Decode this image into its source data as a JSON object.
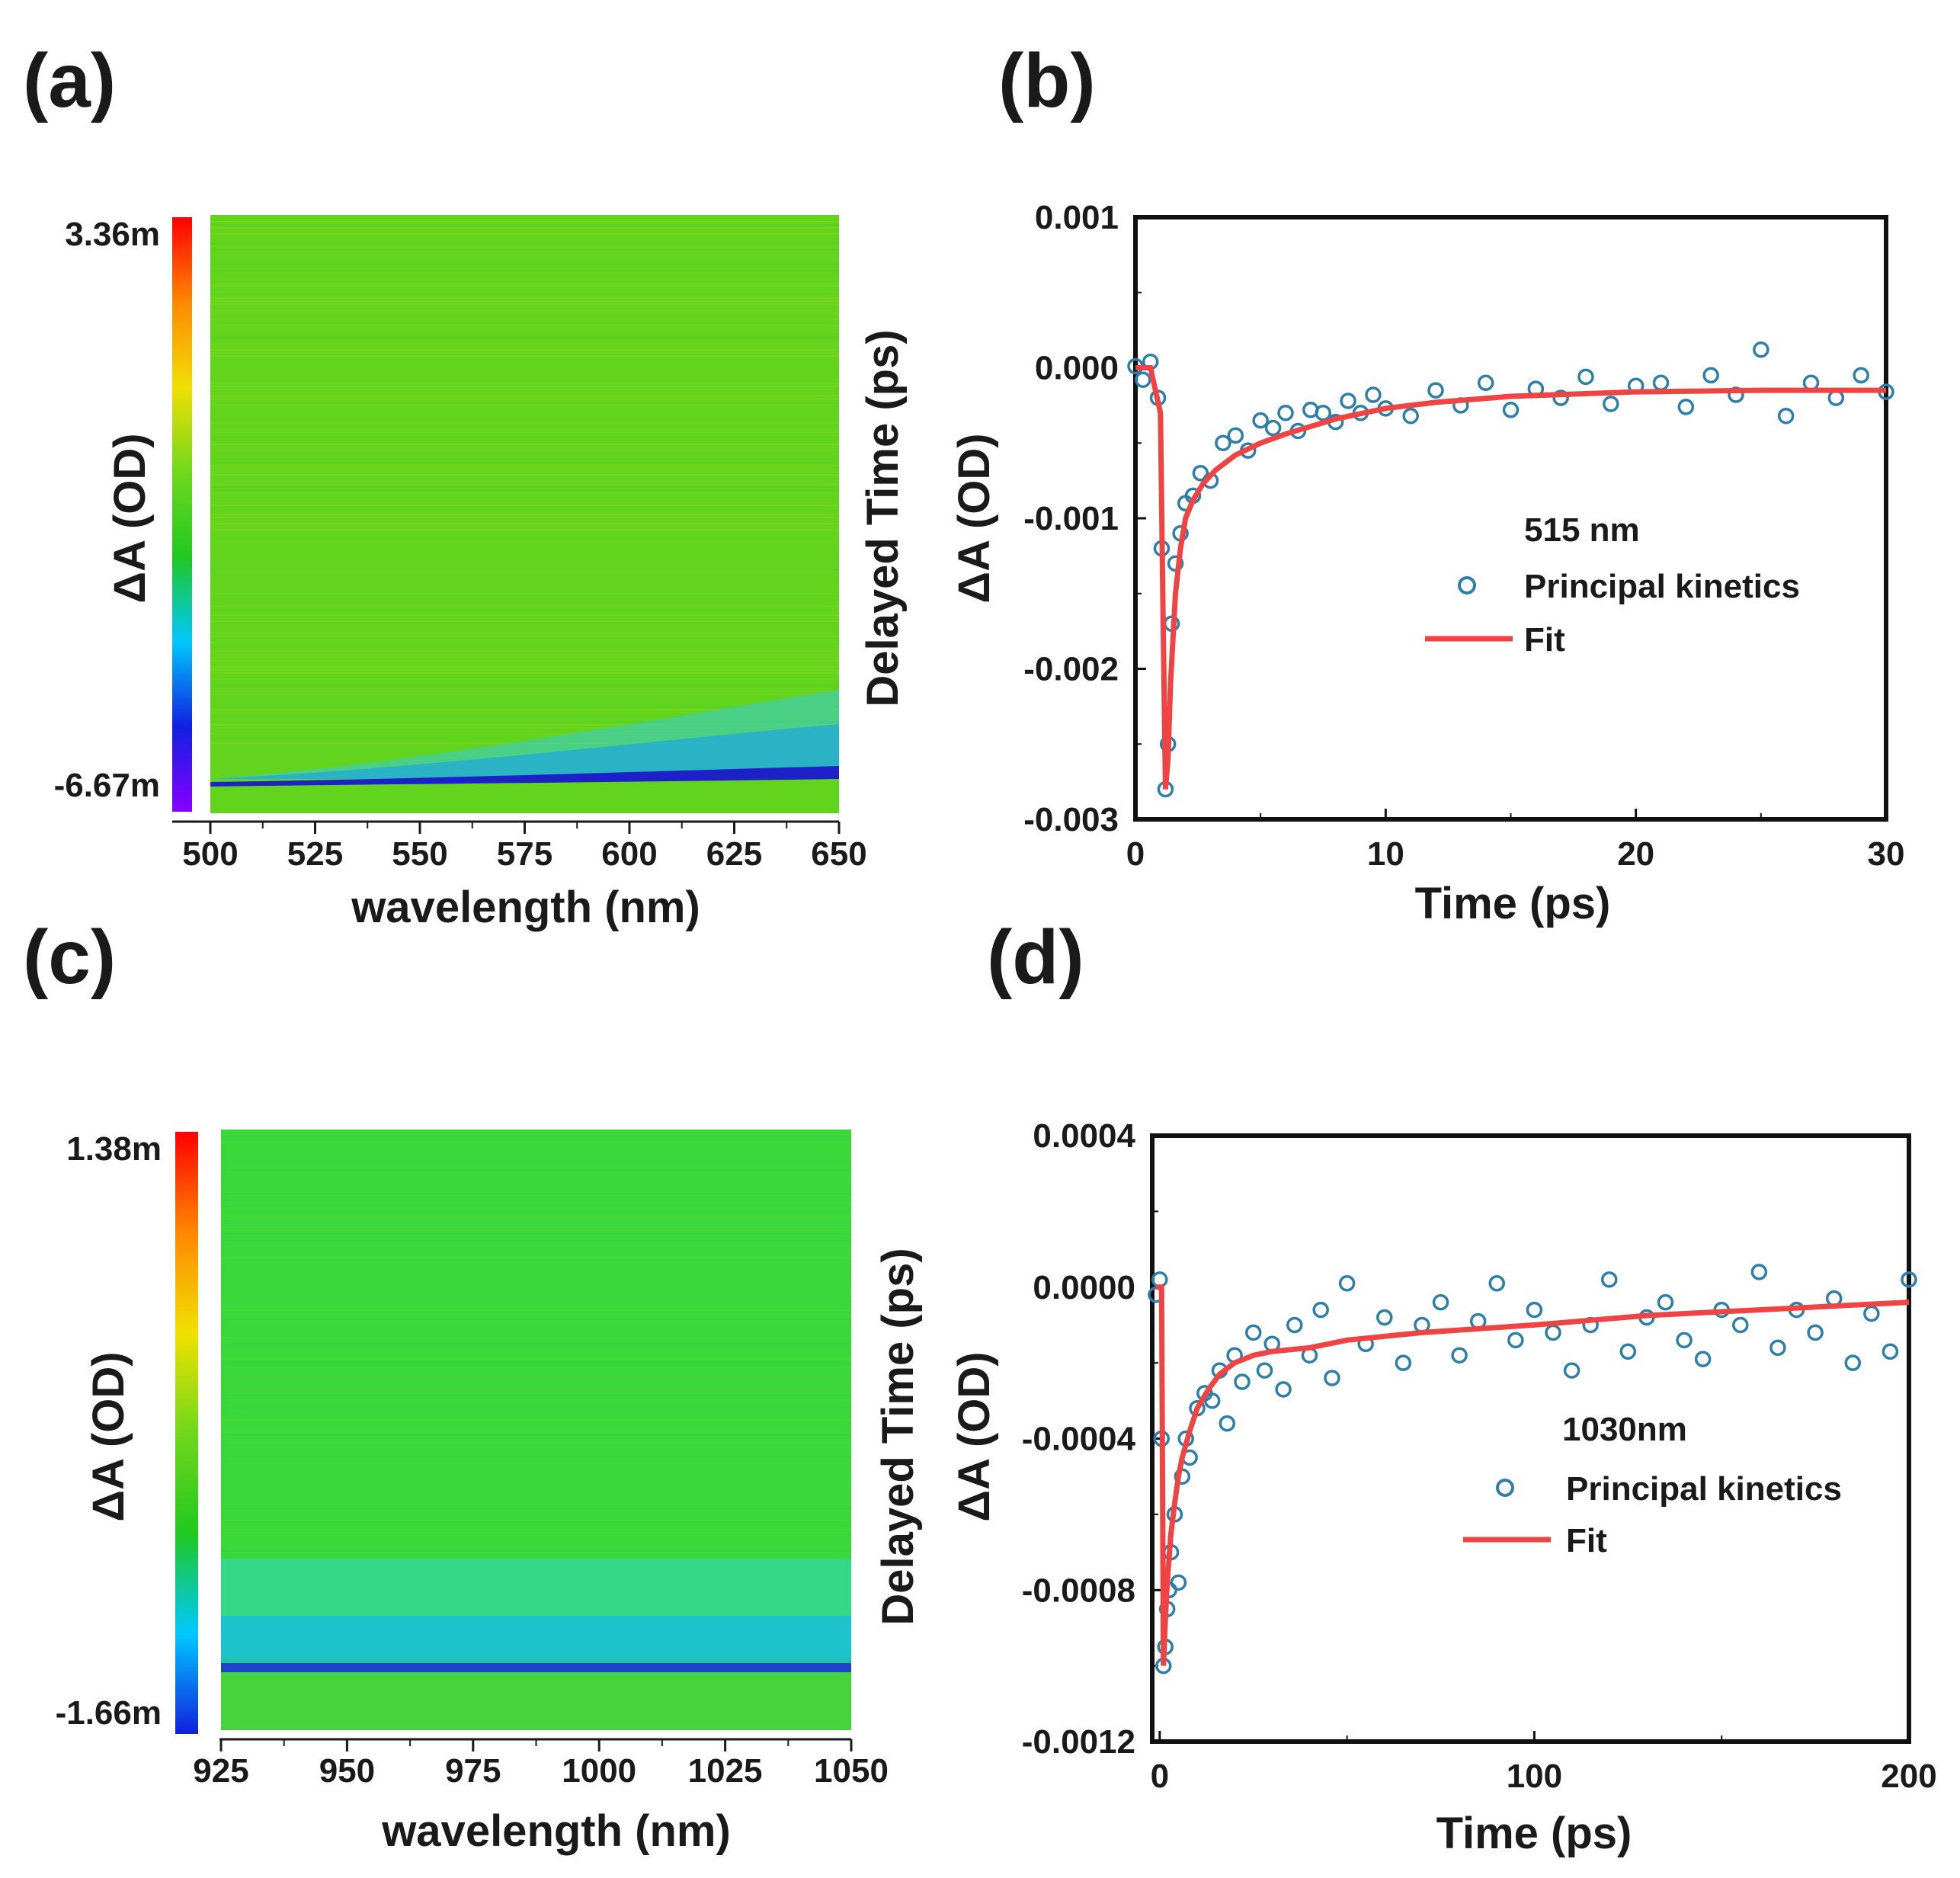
{
  "panels": {
    "a": {
      "label": "(a)"
    },
    "b": {
      "label": "(b)"
    },
    "c": {
      "label": "(c)"
    },
    "d": {
      "label": "(d)"
    }
  },
  "chart_data": [
    {
      "id": "a",
      "type": "heatmap",
      "title": "",
      "xlabel": "wavelength (nm)",
      "ylabel": "Delayed Time (ps)",
      "colorbar_label": "ΔA (OD)",
      "colorbar_max_label": "3.36m",
      "colorbar_min_label": "-6.67m",
      "colorbar_range": [
        -0.00667,
        0.00336
      ],
      "colormap": [
        "#8800ff",
        "#1020e0",
        "#00c8ff",
        "#20c820",
        "#70d81c",
        "#f0e000",
        "#ff8800",
        "#ff0000"
      ],
      "xlim": [
        500,
        650
      ],
      "x_ticks": [
        500,
        525,
        550,
        575,
        600,
        625,
        650
      ],
      "features": {
        "background_value": 0.0,
        "bleach_band_value": -0.0055,
        "bleach_band_position": "near bottom, strongest at long wavelength"
      }
    },
    {
      "id": "b",
      "type": "scatter",
      "title": "",
      "xlabel": "Time (ps)",
      "ylabel": "ΔA (OD)",
      "xlim": [
        0,
        30
      ],
      "ylim": [
        -0.003,
        0.001
      ],
      "x_ticks": [
        0,
        10,
        20,
        30
      ],
      "y_ticks": [
        0.001,
        0.0,
        -0.001,
        -0.002,
        -0.003
      ],
      "y_tick_labels": [
        "0.001",
        "0.000",
        "-0.001",
        "-0.002",
        "-0.003"
      ],
      "annotation": "515 nm",
      "legend_position": "right-middle",
      "series": [
        {
          "name": "Principal kinetics",
          "style": "open-circle",
          "color": "#2e7fa8",
          "x": [
            0.0,
            0.3,
            0.6,
            0.9,
            1.05,
            1.2,
            1.3,
            1.45,
            1.6,
            1.8,
            2.0,
            2.3,
            2.6,
            3.0,
            3.5,
            4.0,
            4.5,
            5.0,
            5.5,
            6.0,
            6.5,
            7.0,
            7.5,
            8.0,
            8.5,
            9.0,
            9.5,
            10.0,
            11.0,
            12.0,
            13.0,
            14.0,
            15.0,
            16.0,
            17.0,
            18.0,
            19.0,
            20.0,
            21.0,
            22.0,
            23.0,
            24.0,
            25.0,
            26.0,
            27.0,
            28.0,
            29.0,
            30.0
          ],
          "y": [
            1e-05,
            -8e-05,
            4e-05,
            -0.0002,
            -0.0012,
            -0.0028,
            -0.0025,
            -0.0017,
            -0.0013,
            -0.0011,
            -0.0009,
            -0.00085,
            -0.0007,
            -0.00075,
            -0.0005,
            -0.00045,
            -0.00055,
            -0.00035,
            -0.0004,
            -0.0003,
            -0.00042,
            -0.00028,
            -0.0003,
            -0.00036,
            -0.00022,
            -0.0003,
            -0.00018,
            -0.00027,
            -0.00032,
            -0.00015,
            -0.00025,
            -0.0001,
            -0.00028,
            -0.00014,
            -0.0002,
            -6e-05,
            -0.00024,
            -0.00012,
            -0.0001,
            -0.00026,
            -5e-05,
            -0.00018,
            0.00012,
            -0.00032,
            -0.0001,
            -0.0002,
            -5e-05,
            -0.00016
          ]
        },
        {
          "name": "Fit",
          "style": "line",
          "color": "#ee4444",
          "x": [
            0.0,
            0.6,
            1.0,
            1.1,
            1.2,
            1.3,
            1.4,
            1.6,
            1.8,
            2.0,
            2.3,
            2.7,
            3.2,
            4.0,
            5.0,
            6.0,
            8.0,
            10.0,
            12.0,
            15.0,
            20.0,
            25.0,
            30.0
          ],
          "y": [
            0.0,
            0.0,
            -0.0003,
            -0.0016,
            -0.0028,
            -0.0026,
            -0.0021,
            -0.0015,
            -0.0012,
            -0.001,
            -0.00088,
            -0.00077,
            -0.00068,
            -0.00058,
            -0.0005,
            -0.00044,
            -0.00034,
            -0.00027,
            -0.00023,
            -0.00019,
            -0.00016,
            -0.00015,
            -0.00015
          ]
        }
      ]
    },
    {
      "id": "c",
      "type": "heatmap",
      "title": "",
      "xlabel": "wavelength (nm)",
      "ylabel": "Delayed Time (ps)",
      "colorbar_label": "ΔA (OD)",
      "colorbar_max_label": "1.38m",
      "colorbar_min_label": "-1.66m",
      "colorbar_range": [
        -0.00166,
        0.00138
      ],
      "colormap": [
        "#1020e0",
        "#00c8ff",
        "#20c820",
        "#70d81c",
        "#f0e000",
        "#ff8800",
        "#ff0000"
      ],
      "xlim": [
        925,
        1050
      ],
      "x_ticks": [
        925,
        950,
        975,
        1000,
        1025,
        1050
      ],
      "features": {
        "background_value": 0.0,
        "bleach_band_value": -0.0012,
        "bleach_band_position": "near bottom, uniform across wavelength"
      }
    },
    {
      "id": "d",
      "type": "scatter",
      "title": "",
      "xlabel": "Time (ps)",
      "ylabel": "ΔA (OD)",
      "xlim": [
        -2,
        200
      ],
      "ylim": [
        -0.0012,
        0.0004
      ],
      "x_ticks": [
        0,
        100,
        200
      ],
      "y_ticks": [
        0.0004,
        0.0,
        -0.0004,
        -0.0008,
        -0.0012
      ],
      "y_tick_labels": [
        "0.0004",
        "0.0000",
        "-0.0004",
        "-0.0008",
        "-0.0012"
      ],
      "annotation": "1030nm",
      "legend_position": "right-middle",
      "series": [
        {
          "name": "Principal kinetics",
          "style": "open-circle",
          "color": "#2e7fa8",
          "x": [
            -1.0,
            0.0,
            0.5,
            1.0,
            1.5,
            2.0,
            2.5,
            3.0,
            4.0,
            5.0,
            6.0,
            7.0,
            8.0,
            10.0,
            12.0,
            14.0,
            16.0,
            18.0,
            20.0,
            22.0,
            25.0,
            28.0,
            30.0,
            33.0,
            36.0,
            40.0,
            43.0,
            46.0,
            50.0,
            55.0,
            60.0,
            65.0,
            70.0,
            75.0,
            80.0,
            85.0,
            90.0,
            95.0,
            100.0,
            105.0,
            110.0,
            115.0,
            120.0,
            125.0,
            130.0,
            135.0,
            140.0,
            145.0,
            150.0,
            155.0,
            160.0,
            165.0,
            170.0,
            175.0,
            180.0,
            185.0,
            190.0,
            195.0,
            200.0
          ],
          "y": [
            -2e-05,
            2e-05,
            -0.0004,
            -0.001,
            -0.00095,
            -0.00085,
            -0.0008,
            -0.0007,
            -0.0006,
            -0.00078,
            -0.0005,
            -0.0004,
            -0.00045,
            -0.00032,
            -0.00028,
            -0.0003,
            -0.00022,
            -0.00036,
            -0.00018,
            -0.00025,
            -0.00012,
            -0.00022,
            -0.00015,
            -0.00027,
            -0.0001,
            -0.00018,
            -6e-05,
            -0.00024,
            1e-05,
            -0.00015,
            -8e-05,
            -0.0002,
            -0.0001,
            -4e-05,
            -0.00018,
            -9e-05,
            1e-05,
            -0.00014,
            -6e-05,
            -0.00012,
            -0.00022,
            -0.0001,
            2e-05,
            -0.00017,
            -8e-05,
            -4e-05,
            -0.00014,
            -0.00019,
            -6e-05,
            -0.0001,
            4e-05,
            -0.00016,
            -6e-05,
            -0.00012,
            -3e-05,
            -0.0002,
            -7e-05,
            -0.00017,
            2e-05
          ]
        },
        {
          "name": "Fit",
          "style": "line",
          "color": "#ee4444",
          "x": [
            -1.0,
            0.5,
            1.0,
            1.5,
            2.0,
            3.0,
            4.0,
            5.0,
            6.0,
            8.0,
            10.0,
            13.0,
            16.0,
            20.0,
            25.0,
            30.0,
            40.0,
            50.0,
            70.0,
            100.0,
            130.0,
            160.0,
            200.0
          ],
          "y": [
            0.0,
            0.0,
            -0.001,
            -0.00088,
            -0.00078,
            -0.00065,
            -0.00057,
            -0.0005,
            -0.00045,
            -0.00038,
            -0.00032,
            -0.00027,
            -0.00023,
            -0.0002,
            -0.00018,
            -0.00017,
            -0.00016,
            -0.00014,
            -0.00012,
            -0.0001,
            -7.5e-05,
            -6e-05,
            -4e-05
          ]
        }
      ]
    }
  ]
}
